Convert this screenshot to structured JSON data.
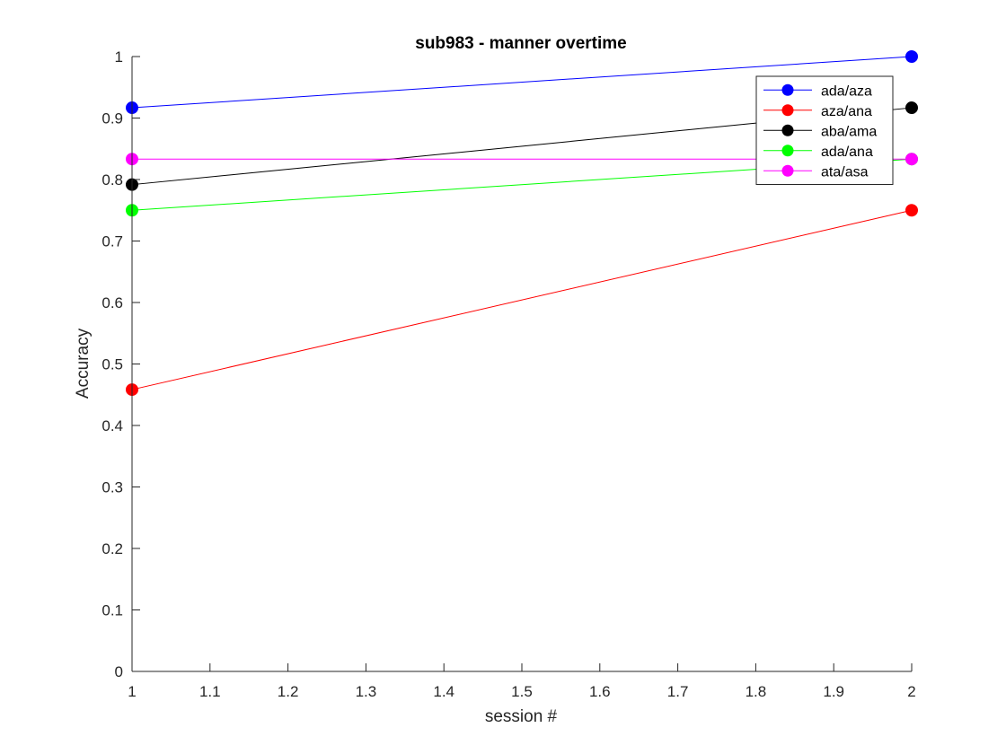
{
  "chart_data": {
    "type": "line",
    "title": "sub983 - manner overtime",
    "xlabel": "session #",
    "ylabel": "Accuracy",
    "xlim": [
      1,
      2
    ],
    "ylim": [
      0,
      1
    ],
    "xticks": [
      1,
      1.1,
      1.2,
      1.3,
      1.4,
      1.5,
      1.6,
      1.7,
      1.8,
      1.9,
      2
    ],
    "xtick_labels": [
      "1",
      "1.1",
      "1.2",
      "1.3",
      "1.4",
      "1.5",
      "1.6",
      "1.7",
      "1.8",
      "1.9",
      "2"
    ],
    "yticks": [
      0,
      0.1,
      0.2,
      0.3,
      0.4,
      0.5,
      0.6,
      0.7,
      0.8,
      0.9,
      1
    ],
    "ytick_labels": [
      "0",
      "0.1",
      "0.2",
      "0.3",
      "0.4",
      "0.5",
      "0.6",
      "0.7",
      "0.8",
      "0.9",
      "1"
    ],
    "grid": false,
    "legend_position": "top-right",
    "x": [
      1,
      2
    ],
    "series": [
      {
        "name": "ada/aza",
        "color": "#0000ff",
        "values": [
          0.9167,
          1.0
        ]
      },
      {
        "name": "aza/ana",
        "color": "#ff0000",
        "values": [
          0.4583,
          0.75
        ]
      },
      {
        "name": "aba/ama",
        "color": "#000000",
        "values": [
          0.7917,
          0.9167
        ]
      },
      {
        "name": "ada/ana",
        "color": "#00ff00",
        "values": [
          0.75,
          0.8333
        ]
      },
      {
        "name": "ata/asa",
        "color": "#ff00ff",
        "values": [
          0.8333,
          0.8333
        ]
      }
    ]
  }
}
